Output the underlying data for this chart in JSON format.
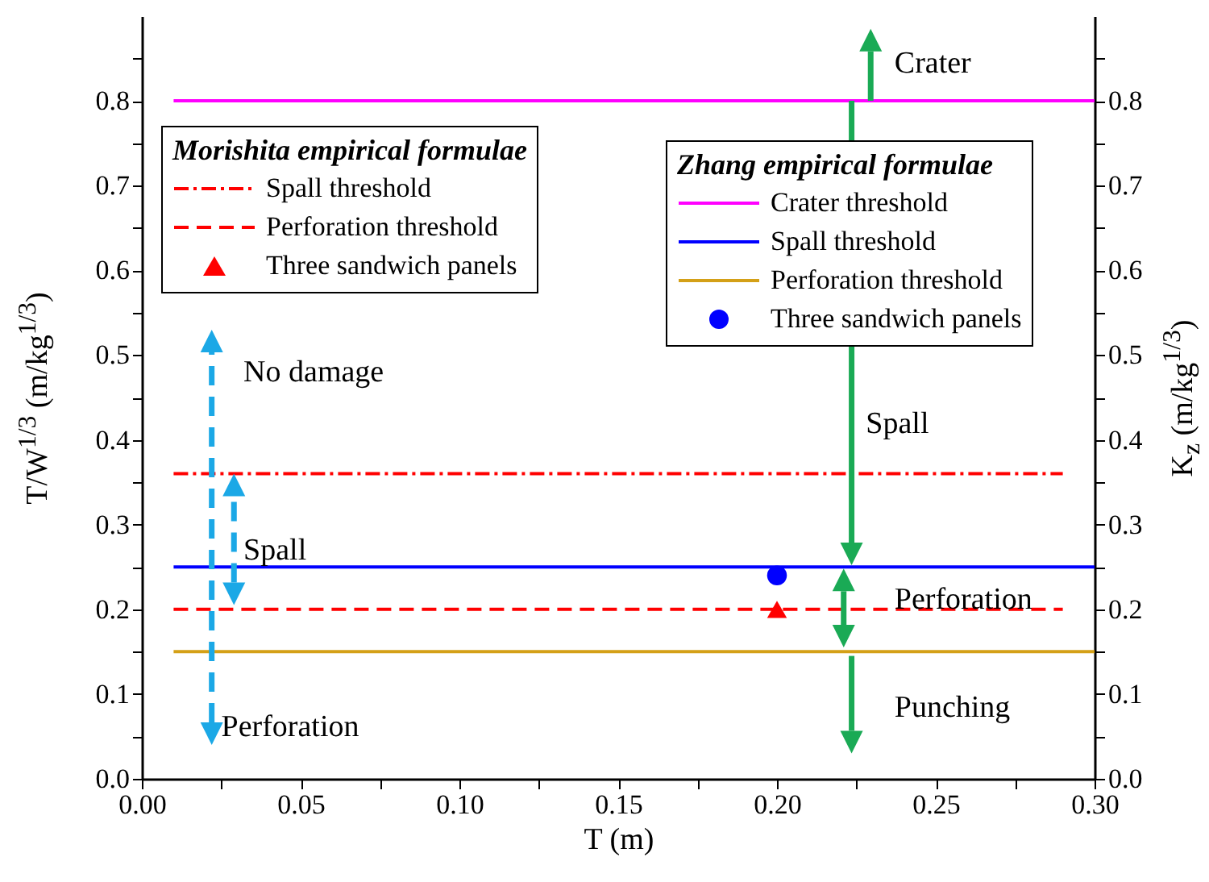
{
  "chart_data": {
    "type": "line",
    "xlabel": "T (m)",
    "ylabel": "T/W$^{1/3}$ (m/kg$^{1/3}$)",
    "y2label": "K$_{z}$ (m/kg$^{1/3}$)",
    "xlim": [
      0,
      0.3
    ],
    "ylim": [
      0,
      0.9
    ],
    "y2lim": [
      0,
      0.9
    ],
    "xticks": [
      {
        "value": 0,
        "label": "0.00"
      },
      {
        "value": 0.025,
        "label": null
      },
      0.05,
      {
        "value": 0.075,
        "label": null
      },
      {
        "value": 0.1,
        "label": "0.10"
      },
      {
        "value": 0.125,
        "label": null
      },
      0.15,
      {
        "value": 0.175,
        "label": null
      },
      {
        "value": 0.2,
        "label": "0.20"
      },
      {
        "value": 0.225,
        "label": null
      },
      0.25,
      {
        "value": 0.275,
        "label": null
      },
      {
        "value": 0.3,
        "label": "0.30"
      }
    ],
    "yticks": [
      {
        "value": 0,
        "label": "0.0"
      },
      {
        "value": 0.05,
        "label": null
      },
      0.1,
      {
        "value": 0.15,
        "label": null
      },
      0.2,
      {
        "value": 0.25,
        "label": null
      },
      0.3,
      {
        "value": 0.35,
        "label": null
      },
      0.4,
      {
        "value": 0.45,
        "label": null
      },
      0.5,
      {
        "value": 0.55,
        "label": null
      },
      0.6,
      {
        "value": 0.65,
        "label": null
      },
      0.7,
      {
        "value": 0.75,
        "label": null
      },
      0.8,
      {
        "value": 0.85,
        "label": null
      }
    ],
    "y2ticks": [
      {
        "value": 0,
        "label": "0.0"
      },
      {
        "value": 0.05,
        "label": null
      },
      0.1,
      {
        "value": 0.15,
        "label": null
      },
      0.2,
      {
        "value": 0.25,
        "label": null
      },
      0.3,
      {
        "value": 0.35,
        "label": null
      },
      0.4,
      {
        "value": 0.45,
        "label": null
      },
      0.5,
      {
        "value": 0.55,
        "label": null
      },
      0.6,
      {
        "value": 0.65,
        "label": null
      },
      0.7,
      {
        "value": 0.75,
        "label": null
      },
      0.8,
      {
        "value": 0.85,
        "label": null
      }
    ],
    "legend": "top",
    "series": [
      {
        "name": "Spall threshold",
        "line_style": "dashdot",
        "color": "#ff0000",
        "x": [
          0.01,
          0.29
        ],
        "values": [
          0.36,
          0.36
        ]
      },
      {
        "name": "Perforation threshold",
        "line_style": "dashed",
        "color": "#ff0000",
        "x": [
          0.01,
          0.29
        ],
        "values": [
          0.2,
          0.2
        ]
      },
      {
        "name": "Three sandwich panels",
        "type": "scatter",
        "marker": "triangle",
        "color": "#ff0000",
        "x": [
          0.2
        ],
        "values": [
          0.2
        ]
      },
      {
        "name": "Crater threshold",
        "line_style": "solid",
        "axis": "y2",
        "color": "#ff00ff",
        "x": [
          0.01,
          0.3
        ],
        "values": [
          0.8,
          0.8
        ]
      },
      {
        "name": "Spall threshold",
        "line_style": "solid",
        "axis": "y2",
        "color": "#0000ff",
        "x": [
          0.01,
          0.3
        ],
        "values": [
          0.25,
          0.25
        ]
      },
      {
        "name": "Perforation threshold",
        "line_style": "solid",
        "axis": "y2",
        "color": "#d4a017",
        "x": [
          0.01,
          0.3
        ],
        "values": [
          0.15,
          0.15
        ]
      },
      {
        "name": "Three sandwich panels",
        "type": "scatter",
        "marker": "circle",
        "axis": "y2",
        "color": "#0000ff",
        "x": [
          0.2
        ],
        "values": [
          0.24
        ]
      }
    ],
    "annotations": [
      "Morishita empirical formulae",
      "Zhang empirical formulae",
      "Crater",
      "No damage",
      "Spall",
      "Perforation",
      "Spall",
      "Perforation",
      "Punching"
    ]
  }
}
